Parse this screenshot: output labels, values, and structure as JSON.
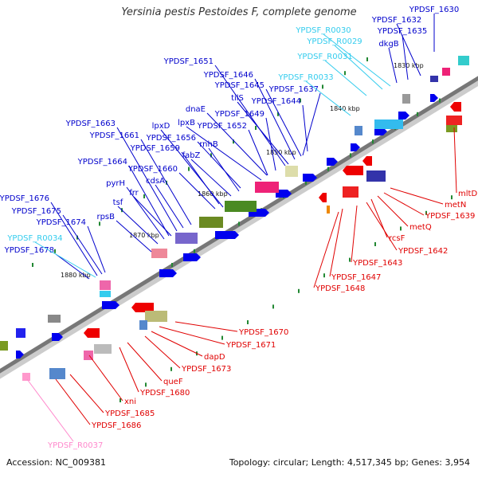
{
  "title": "Yersinia pestis Pestoides F, complete genome",
  "footer": {
    "accession": "Accession: NC_009381",
    "summary": "Topology: circular; Length: 4,517,345 bp; Genes: 3,954"
  },
  "colors": {
    "forward_label": "#0000cc",
    "reverse_label": "#e00000",
    "rna_label": "#33ccee",
    "pseudo_label": "#ff88cc",
    "backbone": "#777777",
    "forward_arrow": "#0000ee",
    "reverse_arrow": "#ee0000",
    "tick": "#228833"
  },
  "kbp_ticks": [
    "1830 kbp",
    "1840 kbp",
    "1850 kbp",
    "1860 kbp",
    "1870 kbp",
    "1880 kbp"
  ],
  "forward_genes": [
    "YPDSF_1630",
    "YPDSF_1632",
    "YPDSF_1635",
    "dkgB",
    "YPDSF_1651",
    "YPDSF_1646",
    "YPDSF_1645",
    "tilS",
    "YPDSF_1637",
    "YPDSF_1644",
    "dnaE",
    "lpxB",
    "YPDSF_1649",
    "lpxD",
    "YPDSF_1652",
    "YPDSF_1663",
    "YPDSF_1661",
    "YPDSF_1656",
    "rnhB",
    "YPDSF_1659",
    "fabZ",
    "YPDSF_1664",
    "YPDSF_1660",
    "cdsA",
    "pyrH",
    "frr",
    "tsf",
    "YPDSF_1676",
    "YPDSF_1675",
    "YPDSF_1674",
    "rpsB",
    "YPDSF_1678"
  ],
  "rna_genes": [
    "YPDSF_R0030",
    "YPDSF_R0029",
    "YPDSF_R0031",
    "YPDSF_R0033",
    "YPDSF_R0034"
  ],
  "reverse_genes_right": [
    "mltD",
    "metN",
    "YPDSF_1639",
    "metQ",
    "rcsF",
    "YPDSF_1642",
    "YPDSF_1643",
    "YPDSF_1647",
    "YPDSF_1648"
  ],
  "reverse_genes_bottom": [
    "YPDSF_1670",
    "YPDSF_1671",
    "dapD",
    "YPDSF_1673",
    "queF",
    "YPDSF_1680",
    "xni",
    "YPDSF_1685",
    "YPDSF_1686"
  ],
  "pseudo_genes": [
    "YPDSF_R0037"
  ]
}
